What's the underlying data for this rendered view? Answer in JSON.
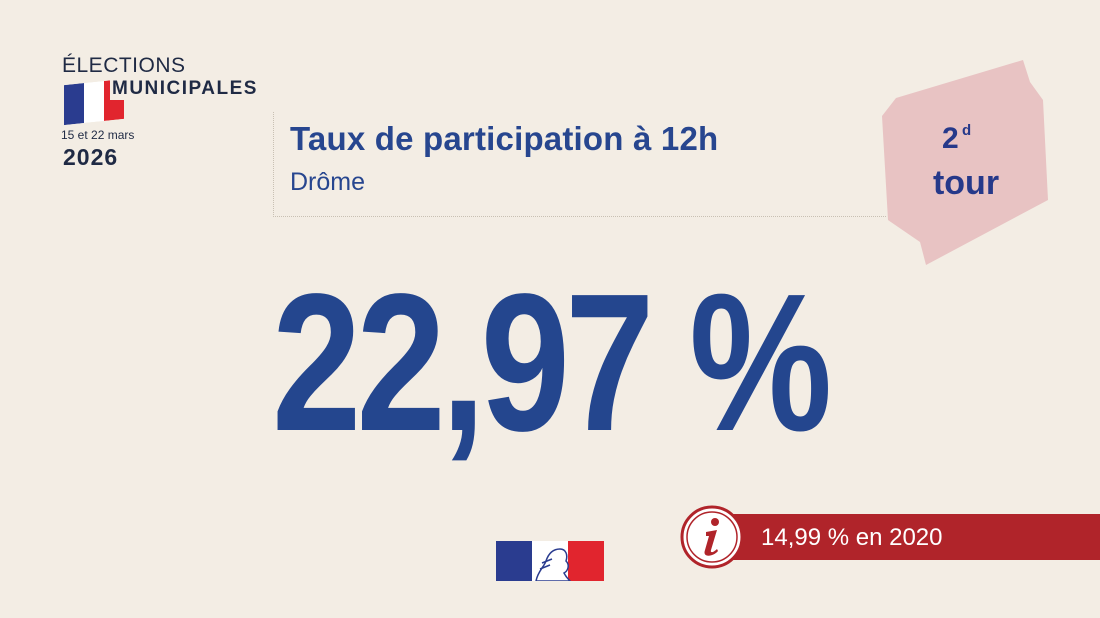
{
  "logo": {
    "line1": "ÉLECTIONS",
    "line2": "MUNICIPALES",
    "dates": "15 et 22 mars",
    "year": "2026",
    "flag_colors": [
      "#2a3c8f",
      "#ffffff",
      "#e1252e"
    ]
  },
  "header": {
    "title": "Taux de participation à 12h",
    "subtitle": "Drôme"
  },
  "badge": {
    "number": "2",
    "superscript": "d",
    "word": "tour",
    "color": "#e8c3c3"
  },
  "main": {
    "value": "22,97 %",
    "color": "#24468e"
  },
  "info": {
    "icon": "info-icon",
    "text": "14,99 % en 2020",
    "color": "#b0242a"
  },
  "footer": {
    "logo": "republique-francaise-logo"
  }
}
